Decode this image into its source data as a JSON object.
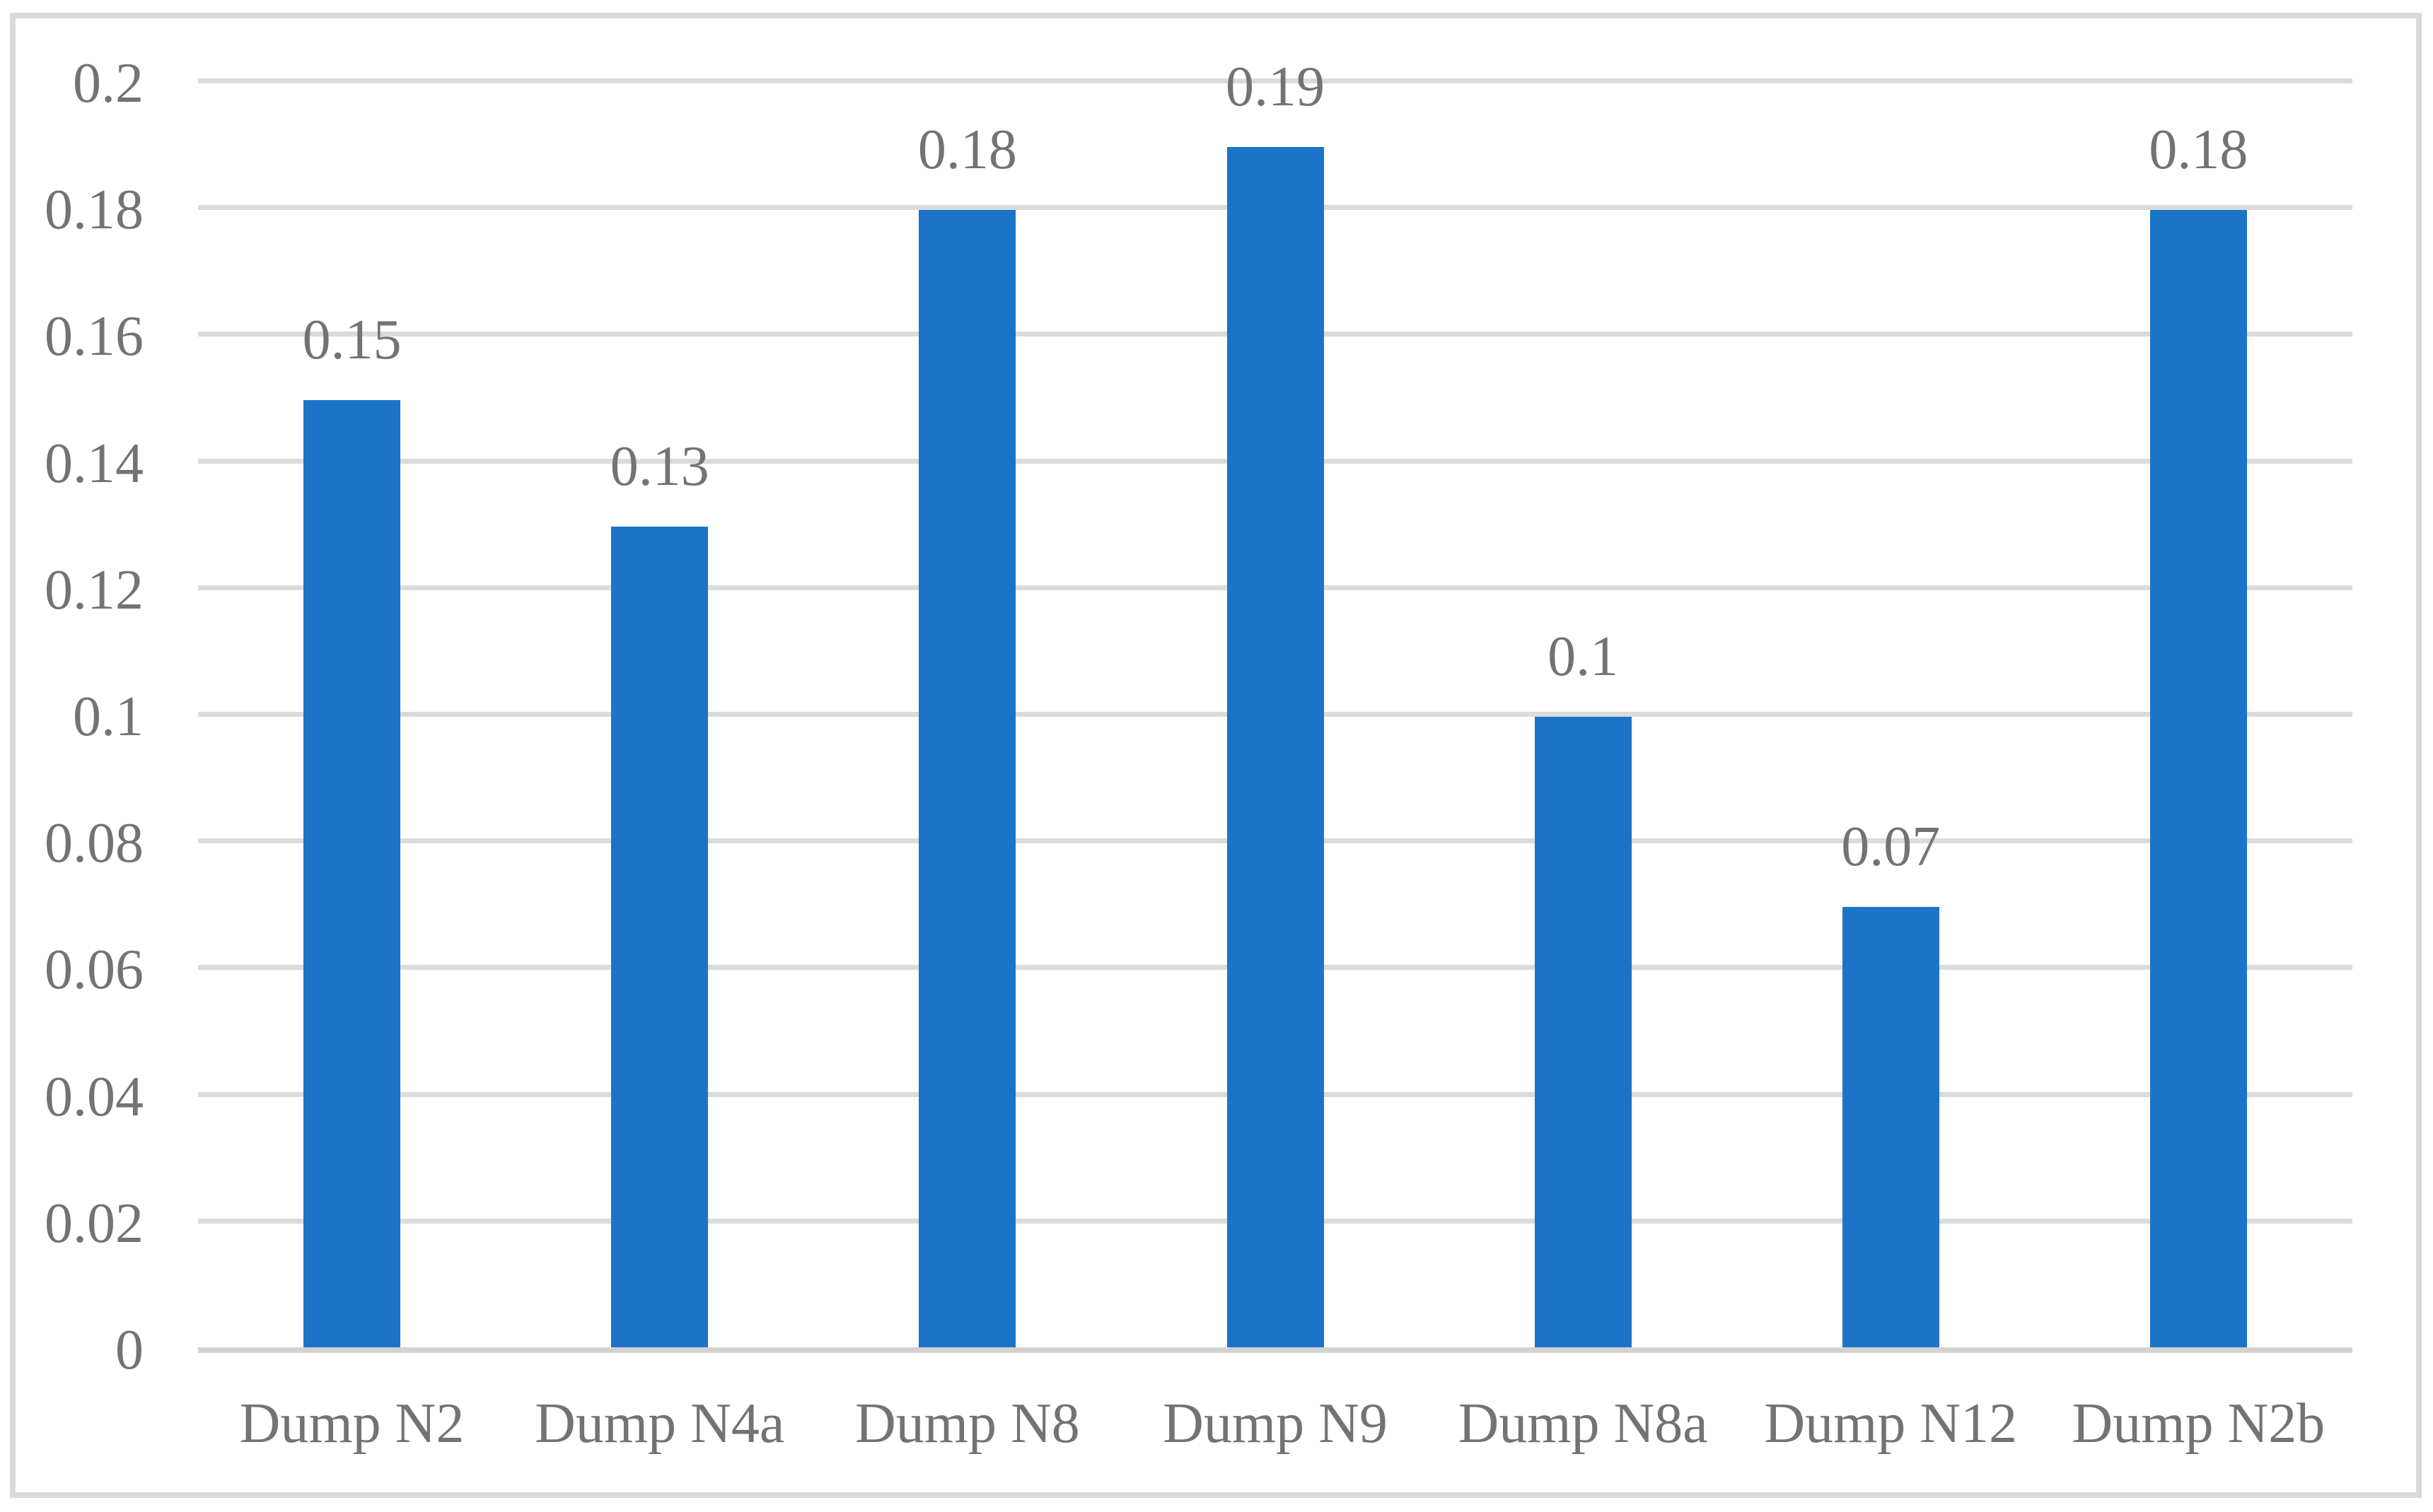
{
  "chart_data": {
    "type": "bar",
    "title": "",
    "xlabel": "",
    "ylabel": "",
    "categories": [
      "Dump N2",
      "Dump N4a",
      "Dump N8",
      "Dump N9",
      "Dump N8a",
      "Dump N12",
      "Dump N2b"
    ],
    "values": [
      0.15,
      0.13,
      0.18,
      0.19,
      0.1,
      0.07,
      0.18
    ],
    "value_labels": [
      "0.15",
      "0.13",
      "0.18",
      "0.19",
      "0.1",
      "0.07",
      "0.18"
    ],
    "ylim": [
      0,
      0.2
    ],
    "yticks": [
      "0",
      "0.02",
      "0.04",
      "0.06",
      "0.08",
      "0.1",
      "0.12",
      "0.14",
      "0.16",
      "0.18",
      "0.2"
    ],
    "grid": "horizontal",
    "legend": "none",
    "colors": {
      "bar": "#1b74c8",
      "text": "#737373",
      "gridline": "#dbdbdb",
      "axis_line": "#d2d2d2",
      "frame": "#d9d9d9",
      "background": "#ffffff"
    }
  }
}
